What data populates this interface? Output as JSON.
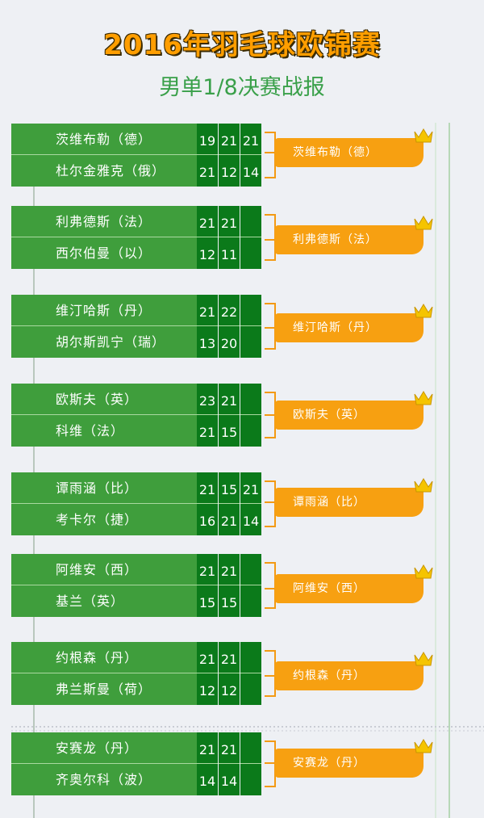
{
  "title": "2016年羽毛球欧锦赛",
  "subtitle": "男单1/8决赛战报",
  "matches": [
    {
      "p1": "茨维布勒（德）",
      "p2": "杜尔金雅克（俄）",
      "s1": [
        "19",
        "21",
        "21"
      ],
      "s2": [
        "21",
        "12",
        "14"
      ],
      "winner": "茨维布勒（德）"
    },
    {
      "p1": "利弗德斯（法）",
      "p2": "西尔伯曼（以）",
      "s1": [
        "21",
        "21",
        ""
      ],
      "s2": [
        "12",
        "11",
        ""
      ],
      "winner": "利弗德斯（法）"
    },
    {
      "p1": "维汀哈斯（丹）",
      "p2": "胡尔斯凯宁（瑞）",
      "s1": [
        "21",
        "22",
        ""
      ],
      "s2": [
        "13",
        "20",
        ""
      ],
      "winner": "维汀哈斯（丹）"
    },
    {
      "p1": "欧斯夫（英）",
      "p2": "科维（法）",
      "s1": [
        "23",
        "21",
        ""
      ],
      "s2": [
        "21",
        "15",
        ""
      ],
      "winner": "欧斯夫（英）"
    },
    {
      "p1": "谭雨涵（比）",
      "p2": "考卡尔（捷）",
      "s1": [
        "21",
        "15",
        "21"
      ],
      "s2": [
        "16",
        "21",
        "14"
      ],
      "winner": "谭雨涵（比）"
    },
    {
      "p1": "阿维安（西）",
      "p2": "基兰（英）",
      "s1": [
        "21",
        "21",
        ""
      ],
      "s2": [
        "15",
        "15",
        ""
      ],
      "winner": "阿维安（西）"
    },
    {
      "p1": "约根森（丹）",
      "p2": "弗兰斯曼（荷）",
      "s1": [
        "21",
        "21",
        ""
      ],
      "s2": [
        "12",
        "12",
        ""
      ],
      "winner": "约根森（丹）"
    },
    {
      "p1": "安赛龙（丹）",
      "p2": "齐奥尔科（波）",
      "s1": [
        "21",
        "21",
        ""
      ],
      "s2": [
        "14",
        "14",
        ""
      ],
      "winner": "安赛龙（丹）"
    }
  ],
  "colors": {
    "player_bg": "#3f9e3c",
    "score_bg": "#0b7a1a",
    "winner_bg": "#f7a011",
    "crown": "#f5c400",
    "title": "#ff9e00",
    "subtitle": "#3aa04a"
  }
}
